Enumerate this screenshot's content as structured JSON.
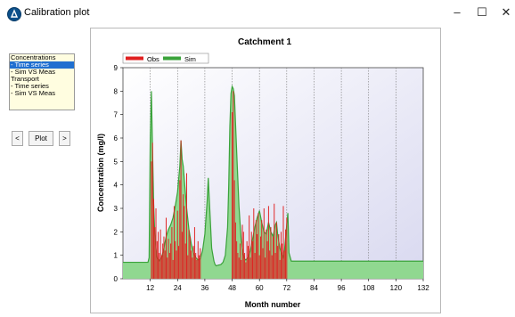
{
  "window": {
    "title": "Calibration plot",
    "controls": {
      "minimize": "–",
      "maximize": "☐",
      "close": "✕"
    }
  },
  "sidebar": {
    "items": [
      {
        "label": "Concentrations",
        "selected": false
      },
      {
        "label": "- Time series",
        "selected": true
      },
      {
        "label": "- Sim VS Meas",
        "selected": false
      },
      {
        "label": "Transport",
        "selected": false
      },
      {
        "label": "- Time series",
        "selected": false
      },
      {
        "label": "- Sim VS Meas",
        "selected": false
      }
    ]
  },
  "nav": {
    "prev": "<",
    "plot": "Plot",
    "next": ">"
  },
  "chart_data": {
    "type": "area",
    "title": "Catchment 1",
    "xlabel": "Month number",
    "ylabel": "Concentration (mg/l)",
    "xlim": [
      0,
      132
    ],
    "ylim": [
      0,
      9
    ],
    "xticks": [
      12,
      24,
      36,
      48,
      60,
      72,
      84,
      96,
      108,
      120,
      132
    ],
    "yticks": [
      0,
      1,
      2,
      3,
      4,
      5,
      6,
      7,
      8,
      9
    ],
    "grid": true,
    "legend": "top-left",
    "colors": {
      "obs": "#e02020",
      "sim": "#3aa23a",
      "sim_fill": "#90d890"
    },
    "series": [
      {
        "name": "Obs",
        "kind": "bar",
        "x": [
          12.5,
          13,
          13.5,
          14,
          14.5,
          15,
          15.5,
          16,
          16.5,
          17,
          17.5,
          18,
          18.5,
          19,
          19.5,
          20,
          20.5,
          21,
          21.5,
          22,
          22.5,
          23,
          23.5,
          24,
          24.5,
          25,
          25.5,
          26,
          26.5,
          27,
          27.5,
          28,
          28.5,
          29,
          29.5,
          30,
          30.5,
          31,
          31.5,
          32,
          32.5,
          33,
          33.5,
          34,
          48,
          48.5,
          49,
          49.5,
          50,
          50.5,
          51,
          51.5,
          52,
          52.5,
          53,
          53.5,
          54,
          54.5,
          55,
          55.5,
          56,
          56.5,
          57,
          57.5,
          58,
          58.5,
          59,
          59.5,
          60,
          60.5,
          61,
          61.5,
          62,
          62.5,
          63,
          63.5,
          64,
          64.5,
          65,
          65.5,
          66,
          66.5,
          67,
          67.5,
          68,
          68.5,
          69,
          69.5,
          70,
          70.5,
          71,
          71.5,
          72
        ],
        "values": [
          5.0,
          5.8,
          3.4,
          2.2,
          3.0,
          1.6,
          2.0,
          1.1,
          2.1,
          1.0,
          1.5,
          1.8,
          1.2,
          2.6,
          0.9,
          1.7,
          1.1,
          1.5,
          2.2,
          0.8,
          3.1,
          1.6,
          1.2,
          2.9,
          1.4,
          4.2,
          5.9,
          2.0,
          3.6,
          3.1,
          1.5,
          4.5,
          1.0,
          2.1,
          1.8,
          1.2,
          0.9,
          1.4,
          2.2,
          1.1,
          0.8,
          1.6,
          1.0,
          1.3,
          7.1,
          8.0,
          4.2,
          2.4,
          1.6,
          1.1,
          0.9,
          1.5,
          0.8,
          2.3,
          2.0,
          1.1,
          0.7,
          1.6,
          1.4,
          2.7,
          0.9,
          2.0,
          1.6,
          3.0,
          1.1,
          2.5,
          1.9,
          2.8,
          1.0,
          1.8,
          2.5,
          1.3,
          3.0,
          0.9,
          2.1,
          1.6,
          3.1,
          1.2,
          2.2,
          1.0,
          1.8,
          3.2,
          1.1,
          2.4,
          1.4,
          1.9,
          0.8,
          2.0,
          1.5,
          3.1,
          1.2,
          2.1,
          2.6
        ]
      },
      {
        "name": "Sim",
        "kind": "area",
        "x": [
          0,
          11,
          11.5,
          12,
          12.5,
          13,
          13.5,
          14,
          14.5,
          15,
          16,
          17,
          18,
          19,
          20,
          21,
          22,
          23,
          24,
          25,
          25.5,
          26,
          26.5,
          27,
          28,
          29,
          30,
          31,
          32,
          33,
          34,
          35,
          36,
          37,
          37.5,
          38,
          39,
          40,
          40.5,
          41,
          42,
          43,
          44,
          45,
          46,
          46.5,
          47,
          47.5,
          48,
          48.5,
          49,
          50,
          51,
          52,
          53,
          53.5,
          54,
          55,
          56,
          57,
          58,
          59,
          60,
          61,
          62,
          63,
          64,
          65,
          66,
          67,
          67.5,
          68,
          69,
          70,
          70.5,
          71,
          72,
          72.5,
          73,
          74,
          75,
          132
        ],
        "values": [
          0.7,
          0.7,
          0.9,
          6.0,
          8.0,
          5.5,
          3.2,
          1.9,
          1.3,
          0.9,
          0.75,
          0.9,
          1.3,
          1.8,
          2.1,
          2.3,
          2.6,
          3.1,
          3.7,
          4.8,
          5.9,
          5.1,
          4.8,
          4.2,
          3.0,
          2.1,
          1.5,
          1.1,
          0.9,
          0.8,
          0.85,
          1.2,
          1.9,
          3.3,
          4.3,
          3.3,
          1.3,
          0.75,
          0.6,
          0.55,
          0.58,
          0.6,
          0.7,
          1.0,
          2.2,
          4.0,
          6.5,
          7.9,
          8.2,
          8.1,
          7.8,
          5.4,
          3.1,
          1.6,
          1.0,
          0.85,
          0.8,
          0.9,
          1.2,
          1.7,
          2.2,
          2.6,
          2.9,
          2.4,
          2.0,
          1.9,
          2.4,
          2.0,
          1.8,
          2.3,
          2.4,
          1.9,
          1.3,
          1.0,
          0.85,
          1.2,
          2.3,
          2.8,
          1.1,
          0.75,
          0.75,
          0.75
        ]
      }
    ]
  }
}
